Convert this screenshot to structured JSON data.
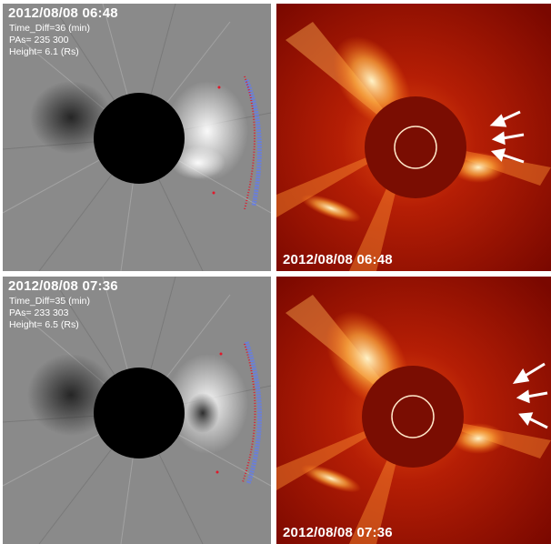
{
  "panels": [
    {
      "kind": "difference",
      "timestamp": "2012/08/08  06:48",
      "info": [
        "Time_Diff=36 (min)",
        "PAs=  235  300",
        "Height=  6.1 (Rs)"
      ]
    },
    {
      "kind": "coronagraph",
      "timestamp": "2012/08/08  06:48",
      "arrows": 3
    },
    {
      "kind": "difference",
      "timestamp": "2012/08/08  07:36",
      "info": [
        "Time_Diff=35 (min)",
        "PAs=  233  303",
        "Height=  6.5 (Rs)"
      ]
    },
    {
      "kind": "coronagraph",
      "timestamp": "2012/08/08  07:36",
      "arrows": 3
    }
  ],
  "colors": {
    "difference_background": "#8a8a8a",
    "occulter": "#000000",
    "coronagraph_background": "#8b0a00",
    "bright_structure": "#fff0c0",
    "arrow": "#ffffff",
    "fit_blue": "#6a7fd8",
    "fit_red": "#e0182a"
  }
}
